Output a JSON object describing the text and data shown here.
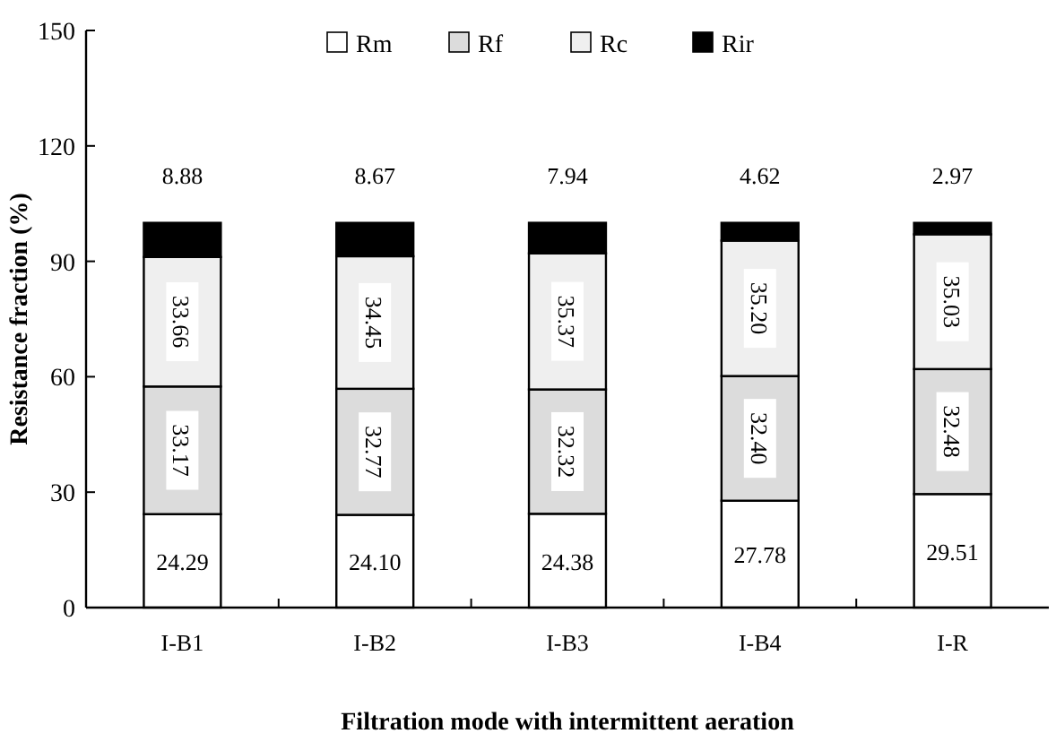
{
  "chart_data": {
    "type": "bar",
    "stacked": true,
    "xlabel": "Filtration mode with intermittent aeration",
    "ylabel": "Resistance fraction (%)",
    "categories": [
      "I-B1",
      "I-B2",
      "I-B3",
      "I-B4",
      "I-R"
    ],
    "ylim": [
      0,
      150
    ],
    "yticks": [
      0,
      30,
      60,
      90,
      120,
      150
    ],
    "legend": "top",
    "grid": false,
    "series": [
      {
        "name": "Rm",
        "color": "#ffffff",
        "values": [
          24.29,
          24.1,
          24.38,
          27.78,
          29.51
        ],
        "value_labels": [
          "24.29",
          "24.10",
          "24.38",
          "27.78",
          "29.51"
        ]
      },
      {
        "name": "Rf",
        "color": "#dcdcdc",
        "values": [
          33.17,
          32.77,
          32.32,
          32.4,
          32.48
        ],
        "value_labels": [
          "33.17",
          "32.77",
          "32.32",
          "32.40",
          "32.48"
        ]
      },
      {
        "name": "Rc",
        "color": "#efefef",
        "values": [
          33.66,
          34.45,
          35.37,
          35.2,
          35.03
        ],
        "value_labels": [
          "33.66",
          "34.45",
          "35.37",
          "35.20",
          "35.03"
        ]
      },
      {
        "name": "Rir",
        "color": "#000000",
        "values": [
          8.88,
          8.67,
          7.94,
          4.62,
          2.97
        ],
        "value_labels": [
          "8.88",
          "8.67",
          "7.94",
          "4.62",
          "2.97"
        ]
      }
    ]
  }
}
